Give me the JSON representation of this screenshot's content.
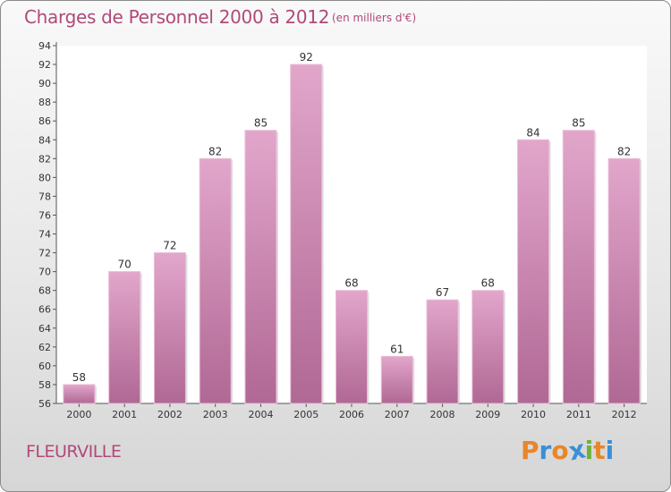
{
  "page": {
    "title": "Charges de Personnel 2000 à 2012",
    "subtitle": "(en milliers d'€)",
    "place": "FLEURVILLE",
    "logo": "Proxiti"
  },
  "colors": {
    "title": "#b0497a",
    "bar_top": "#e2a6cb",
    "bar_bottom": "#b06894",
    "logo_letters": [
      "#e8862a",
      "#3a8fd8",
      "#e8862a",
      "#3a8fd8",
      "#6ab43a",
      "#e8862a",
      "#3a8fd8"
    ]
  },
  "chart_data": {
    "type": "bar",
    "categories": [
      "2000",
      "2001",
      "2002",
      "2003",
      "2004",
      "2005",
      "2006",
      "2007",
      "2008",
      "2009",
      "2010",
      "2011",
      "2012"
    ],
    "values": [
      58,
      70,
      72,
      82,
      85,
      92,
      68,
      61,
      67,
      68,
      84,
      85,
      82
    ],
    "data_labels": [
      "58",
      "70",
      "72",
      "82",
      "85",
      "92",
      "68",
      "61",
      "67",
      "68",
      "84",
      "85",
      "82"
    ],
    "title": "Charges de Personnel 2000 à 2012",
    "xlabel": "",
    "ylabel": "",
    "ylim": [
      56,
      94
    ],
    "yticks": [
      56,
      58,
      60,
      62,
      64,
      66,
      68,
      70,
      72,
      74,
      76,
      78,
      80,
      82,
      84,
      86,
      88,
      90,
      92,
      94
    ],
    "ytick_labels": [
      "56",
      "58",
      "60",
      "62",
      "64",
      "66",
      "68",
      "70",
      "72",
      "74",
      "76",
      "78",
      "80",
      "82",
      "84",
      "86",
      "88",
      "90",
      "92",
      "94"
    ],
    "grid": false,
    "legend": "none"
  }
}
